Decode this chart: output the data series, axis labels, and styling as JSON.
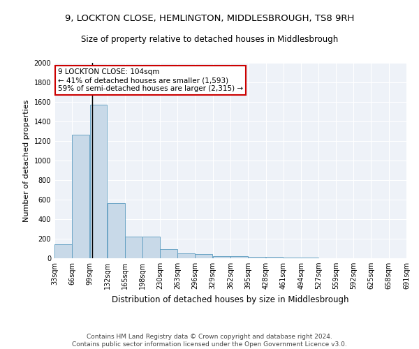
{
  "title_line1": "9, LOCKTON CLOSE, HEMLINGTON, MIDDLESBROUGH, TS8 9RH",
  "title_line2": "Size of property relative to detached houses in Middlesbrough",
  "xlabel": "Distribution of detached houses by size in Middlesbrough",
  "ylabel": "Number of detached properties",
  "footer_line1": "Contains HM Land Registry data © Crown copyright and database right 2024.",
  "footer_line2": "Contains public sector information licensed under the Open Government Licence v3.0.",
  "annotation_line1": "9 LOCKTON CLOSE: 104sqm",
  "annotation_line2": "← 41% of detached houses are smaller (1,593)",
  "annotation_line3": "59% of semi-detached houses are larger (2,315) →",
  "property_size": 104,
  "bar_color": "#c8d9e8",
  "bar_edge_color": "#5a9abf",
  "vline_color": "#000000",
  "annotation_box_edgecolor": "#cc0000",
  "bins": [
    33,
    66,
    99,
    132,
    165,
    198,
    230,
    263,
    296,
    329,
    362,
    395,
    428,
    461,
    494,
    527,
    559,
    592,
    625,
    658,
    691
  ],
  "bar_heights": [
    140,
    1265,
    1573,
    565,
    220,
    220,
    95,
    50,
    40,
    25,
    18,
    15,
    12,
    8,
    5,
    3,
    2,
    1,
    1,
    1
  ],
  "ylim": [
    0,
    2000
  ],
  "yticks": [
    0,
    200,
    400,
    600,
    800,
    1000,
    1200,
    1400,
    1600,
    1800,
    2000
  ],
  "background_color": "#eef2f8",
  "grid_color": "#ffffff",
  "title1_fontsize": 9.5,
  "title2_fontsize": 8.5,
  "tick_fontsize": 7,
  "ylabel_fontsize": 8,
  "xlabel_fontsize": 8.5,
  "footer_fontsize": 6.5
}
